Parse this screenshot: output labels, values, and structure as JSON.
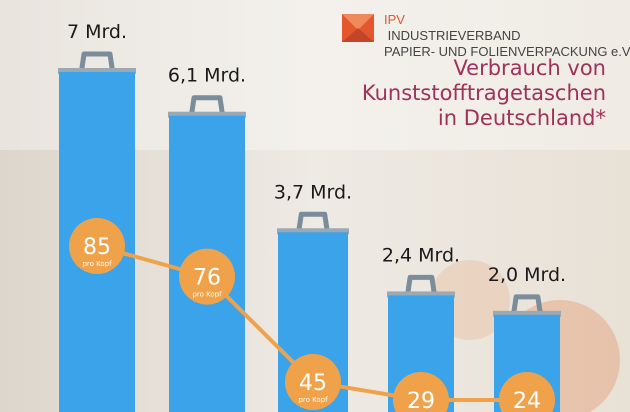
{
  "brand": {
    "prefix": "IPV",
    "line1": "INDUSTRIEVERBAND",
    "line2": "PAPIER- UND FOLIENVERPACKUNG e.V.",
    "accent_color": "#e4572e"
  },
  "headline": {
    "line1": "Verbrauch von",
    "line2": "Kunststofftragetaschen",
    "line3": "in Deutschland*",
    "color": "#a0315a"
  },
  "chart_data": {
    "type": "bar",
    "categories": [
      "",
      "",
      "",
      "",
      ""
    ],
    "title": "Verbrauch von Kunststofftragetaschen in Deutschland*",
    "series": [
      {
        "name": "",
        "values": [
          7.0,
          6.1,
          3.7,
          2.4,
          2.0
        ],
        "labels": [
          "7 Mrd.",
          "6,1 Mrd.",
          "3,7 Mrd.",
          "2,4 Mrd.",
          "2,0 Mrd."
        ],
        "color": "#3aa3ea"
      },
      {
        "name": "pro Kopf",
        "type": "line",
        "values": [
          85,
          76,
          45,
          29,
          24
        ],
        "unit_label": "pro Kopf",
        "color": "#f0a24a"
      }
    ],
    "ylim": [
      0,
      7.0
    ],
    "grid": false,
    "legend": "none"
  }
}
